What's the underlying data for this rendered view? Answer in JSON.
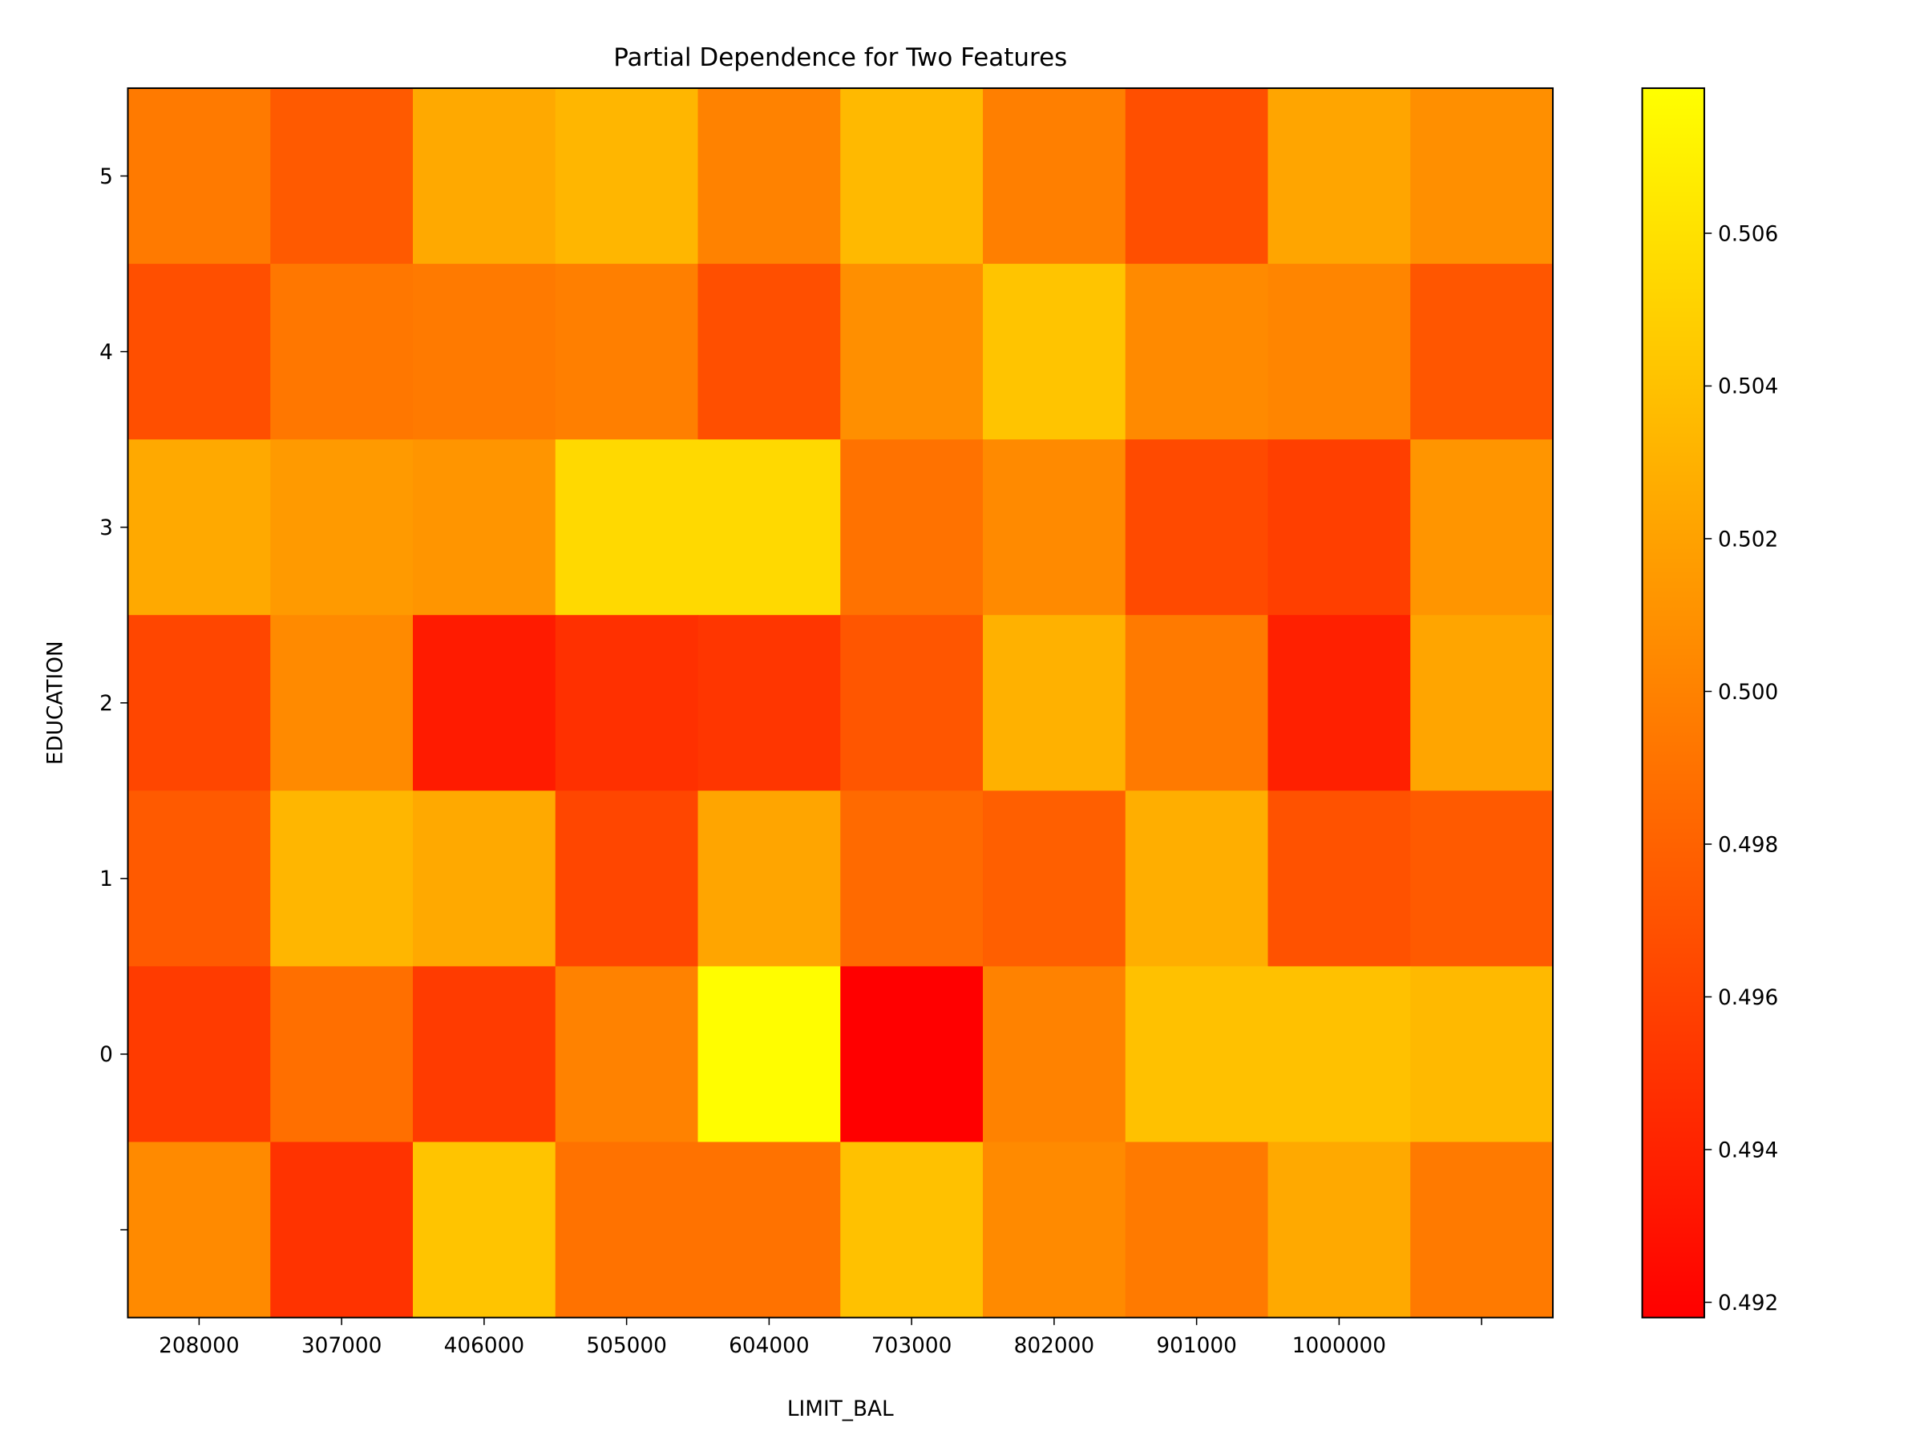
{
  "chart_data": {
    "type": "heatmap",
    "title": "Partial Dependence for Two Features",
    "xlabel": "LIMIT_BAL",
    "ylabel": "EDUCATION",
    "x_tick_labels": [
      "208000",
      "307000",
      "406000",
      "505000",
      "604000",
      "703000",
      "802000",
      "901000",
      "1000000",
      ""
    ],
    "y_tick_labels_top_to_bottom": [
      "5",
      "4",
      "3",
      "2",
      "1",
      "0",
      ""
    ],
    "colormap": "autumn",
    "colorbar": {
      "range": [
        0.4918,
        0.5079
      ],
      "ticks": [
        "0.492",
        "0.494",
        "0.496",
        "0.498",
        "0.500",
        "0.502",
        "0.504",
        "0.506"
      ]
    },
    "values_top_to_bottom": [
      [
        0.4995,
        0.4975,
        0.5025,
        0.5033,
        0.5,
        0.5035,
        0.4998,
        0.4968,
        0.5022,
        0.5008
      ],
      [
        0.4968,
        0.4993,
        0.4995,
        0.4998,
        0.4968,
        0.5008,
        0.5042,
        0.5005,
        0.5002,
        0.4972
      ],
      [
        0.5025,
        0.5015,
        0.5012,
        0.5055,
        0.5055,
        0.499,
        0.5005,
        0.4965,
        0.4958,
        0.5012
      ],
      [
        0.4962,
        0.5005,
        0.4935,
        0.4948,
        0.4952,
        0.4972,
        0.503,
        0.4995,
        0.4938,
        0.5022
      ],
      [
        0.4975,
        0.5033,
        0.5025,
        0.4962,
        0.5022,
        0.4985,
        0.4978,
        0.5028,
        0.497,
        0.4975
      ],
      [
        0.4955,
        0.4988,
        0.4955,
        0.5,
        0.5078,
        0.4918,
        0.5,
        0.504,
        0.504,
        0.5035
      ],
      [
        0.5005,
        0.495,
        0.5042,
        0.499,
        0.499,
        0.504,
        0.5005,
        0.4995,
        0.5025,
        0.4995
      ]
    ]
  }
}
